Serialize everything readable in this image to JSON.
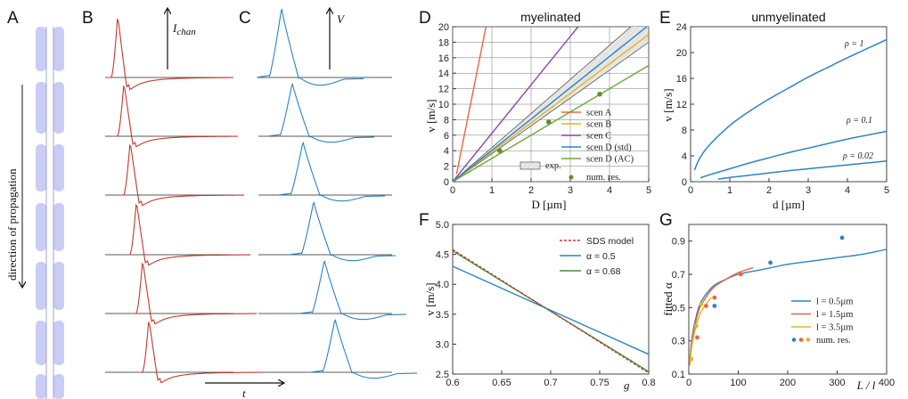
{
  "panel_letters": [
    "A",
    "B",
    "C",
    "D",
    "E",
    "F",
    "G"
  ],
  "schematic": {
    "arrow_label": "direction of propagation",
    "i_label": "I",
    "i_sub": "chan",
    "v_label": "V",
    "t_label": "t"
  },
  "colors": {
    "red": "#c0392b",
    "blue": "#2b83c6",
    "orange": "#e8673a",
    "yellow": "#e6b422",
    "purple": "#8e3fb0",
    "green": "#6aab3a",
    "olive": "#6b8a2c",
    "darkgreen": "#3f8f3f",
    "myelin": "#c9cdf5"
  },
  "chart_data": [
    {
      "panel": "D",
      "type": "line",
      "title": "myelinated",
      "xlabel": "D [µm]",
      "ylabel": "v [m/s]",
      "xlim": [
        0,
        5
      ],
      "ylim": [
        0,
        20
      ],
      "xticks": [
        "0",
        "1",
        "2",
        "3",
        "4",
        "5"
      ],
      "yticks": [
        "0",
        "2",
        "4",
        "6",
        "8",
        "10",
        "12",
        "14",
        "16",
        "18",
        "20"
      ],
      "series": [
        {
          "name": "scen A",
          "color": "#e8673a",
          "x": [
            0.1,
            0.85
          ],
          "y": [
            1.0,
            20
          ]
        },
        {
          "name": "scen B",
          "color": "#e6b422",
          "x": [
            0,
            5
          ],
          "y": [
            0,
            19.0
          ]
        },
        {
          "name": "scen C",
          "color": "#8e3fb0",
          "x": [
            0,
            3.2
          ],
          "y": [
            0,
            20
          ]
        },
        {
          "name": "scen D (std)",
          "color": "#2b83c6",
          "x": [
            0,
            5
          ],
          "y": [
            0,
            20.2
          ]
        },
        {
          "name": "scen D (AC)",
          "color": "#6aab3a",
          "x": [
            0,
            5
          ],
          "y": [
            0,
            15.0
          ]
        }
      ],
      "band": {
        "name": "exp.",
        "x": [
          0,
          5
        ],
        "lower": [
          0,
          18.0
        ],
        "upper": [
          0,
          22.0
        ]
      },
      "points": {
        "name": "num. res.",
        "x": [
          1.2,
          2.45,
          3.75
        ],
        "y": [
          4.0,
          7.7,
          11.3
        ]
      }
    },
    {
      "panel": "E",
      "type": "line",
      "title": "unmyelinated",
      "xlabel": "d [µm]",
      "ylabel": "v [m/s]",
      "xlim": [
        0,
        5
      ],
      "ylim": [
        0,
        24
      ],
      "xticks": [
        "0",
        "1",
        "2",
        "3",
        "4",
        "5"
      ],
      "yticks": [
        "0",
        "4",
        "8",
        "12",
        "16",
        "20",
        "24"
      ],
      "series": [
        {
          "name": "ρ = 1",
          "color": "#2b83c6",
          "x": [
            0.1,
            0.25,
            0.5,
            1,
            1.5,
            2,
            2.5,
            3,
            3.5,
            4,
            4.5,
            5
          ],
          "y": [
            1.8,
            3.8,
            5.8,
            8.7,
            10.9,
            12.8,
            14.5,
            16.2,
            17.7,
            19.2,
            20.6,
            22.0
          ]
        },
        {
          "name": "ρ = 0.1",
          "color": "#2b83c6",
          "x": [
            0.25,
            0.5,
            1,
            1.5,
            2,
            2.5,
            3,
            3.5,
            4,
            4.5,
            5
          ],
          "y": [
            0.6,
            1.1,
            2.0,
            2.9,
            3.7,
            4.5,
            5.2,
            5.9,
            6.6,
            7.2,
            7.8
          ]
        },
        {
          "name": "ρ = 0.02",
          "color": "#2b83c6",
          "x": [
            0.7,
            1,
            1.5,
            2,
            2.5,
            3,
            3.5,
            4,
            4.5,
            5
          ],
          "y": [
            0.4,
            0.65,
            1.0,
            1.35,
            1.7,
            2.0,
            2.3,
            2.6,
            2.9,
            3.2
          ]
        }
      ]
    },
    {
      "panel": "F",
      "type": "line",
      "xlabel": "g",
      "ylabel": "v [m/s]",
      "xlim": [
        0.6,
        0.8
      ],
      "ylim": [
        2.5,
        5.0
      ],
      "xticks": [
        "0.6",
        "0.65",
        "0.7",
        "0.75",
        "0.8"
      ],
      "yticks": [
        "2.5",
        "3.0",
        "3.5",
        "4.0",
        "4.5",
        "5.0"
      ],
      "series": [
        {
          "name": "SDS model",
          "color": "#c0392b",
          "dashed": true,
          "x": [
            0.6,
            0.8
          ],
          "y": [
            4.58,
            2.52
          ]
        },
        {
          "name": "α = 0.5",
          "color": "#2b83c6",
          "x": [
            0.6,
            0.8
          ],
          "y": [
            4.3,
            2.83
          ]
        },
        {
          "name": "α = 0.68",
          "color": "#3f8f3f",
          "x": [
            0.6,
            0.8
          ],
          "y": [
            4.56,
            2.54
          ]
        }
      ]
    },
    {
      "panel": "G",
      "type": "scatter",
      "xlabel": "L / l",
      "ylabel": "fitted α",
      "xlim": [
        0,
        400
      ],
      "ylim": [
        0.1,
        1.0
      ],
      "xticks": [
        "0",
        "100",
        "200",
        "300",
        "400"
      ],
      "yticks": [
        "0.1",
        "0.3",
        "0.5",
        "0.7",
        "0.9"
      ],
      "series": [
        {
          "name": "l = 0.5µm",
          "color": "#2b83c6",
          "x": [
            2,
            5,
            10,
            20,
            30,
            50,
            75,
            100,
            150,
            200,
            250,
            300,
            350,
            400
          ],
          "y": [
            0.18,
            0.28,
            0.38,
            0.5,
            0.56,
            0.63,
            0.67,
            0.7,
            0.73,
            0.76,
            0.78,
            0.8,
            0.82,
            0.85
          ]
        },
        {
          "name": "l = 1.5µm",
          "color": "#e8673a",
          "x": [
            2,
            5,
            10,
            20,
            30,
            50,
            75,
            100,
            130
          ],
          "y": [
            0.16,
            0.26,
            0.36,
            0.48,
            0.54,
            0.62,
            0.67,
            0.71,
            0.74
          ]
        },
        {
          "name": "l = 3.5µm",
          "color": "#e6b422",
          "x": [
            2,
            5,
            10,
            20,
            30,
            45
          ],
          "y": [
            0.15,
            0.24,
            0.33,
            0.44,
            0.5,
            0.56
          ]
        }
      ],
      "points": [
        {
          "name": "num. res.",
          "color": "#2b83c6",
          "x": [
            52,
            165,
            310
          ],
          "y": [
            0.51,
            0.77,
            0.92
          ]
        },
        {
          "name": "num. res.",
          "color": "#e8673a",
          "x": [
            17,
            35,
            52,
            105
          ],
          "y": [
            0.32,
            0.51,
            0.56,
            0.7
          ]
        },
        {
          "name": "num. res.",
          "color": "#e6b422",
          "x": [
            5,
            15,
            25
          ],
          "y": [
            0.19,
            0.39,
            0.52
          ]
        }
      ],
      "legend_points_label": "num. res."
    }
  ]
}
